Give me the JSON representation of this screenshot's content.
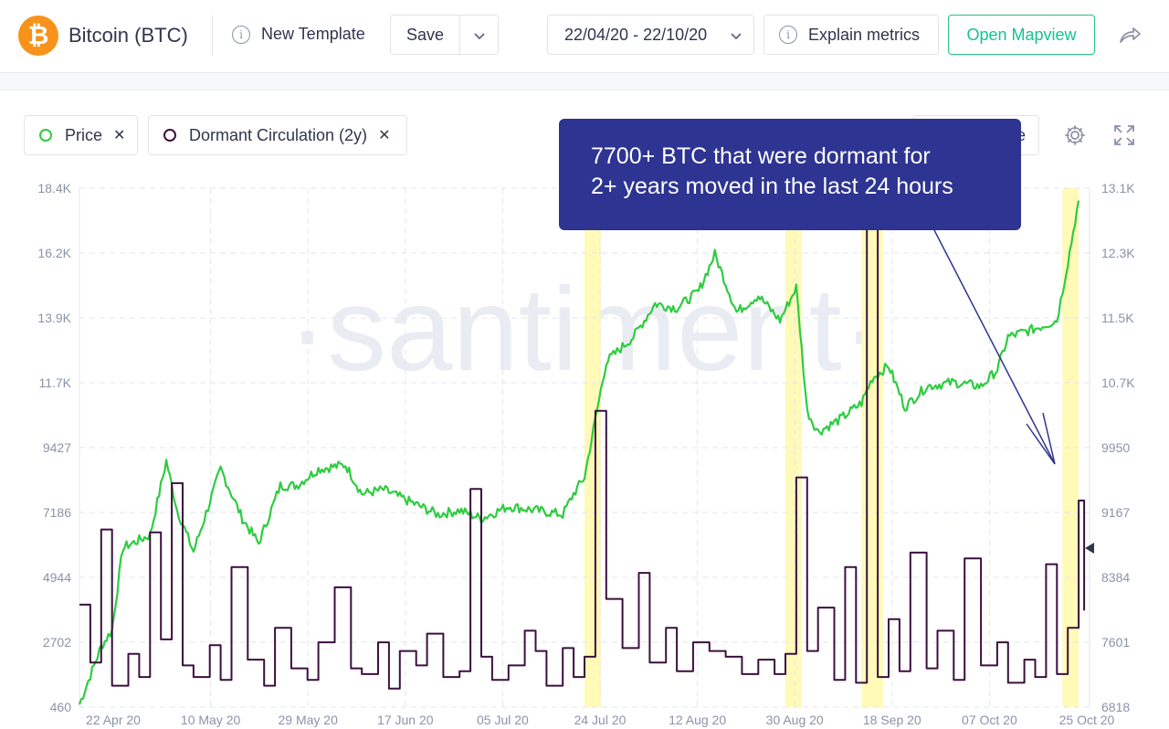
{
  "header": {
    "asset_title": "Bitcoin (BTC)",
    "new_template_label": "New Template",
    "save_label": "Save",
    "date_range": "22/04/20 - 22/10/20",
    "explain_label": "Explain metrics",
    "mapview_label": "Open Mapview",
    "icons": {
      "logo": "bitcoin-logo-icon",
      "info": "info-icon",
      "dropdown": "chevron-down-icon",
      "share": "share-icon",
      "settings": "gear-icon",
      "fullscreen": "expand-icon",
      "remove": "close-icon"
    }
  },
  "legend": {
    "price_label": "Price",
    "dormant_label": "Dormant Circulation (2y)",
    "hidden_button_fragment": "e"
  },
  "annotation": {
    "line1": "7700+ BTC that were dormant for",
    "line2": "2+ years moved in the last 24 hours"
  },
  "watermark": "·santiment·",
  "colors": {
    "price": "#2ecc40",
    "dormant": "#3c0f3e",
    "highlight": "#fffab8",
    "callout": "#2e3491",
    "accent": "#14c393",
    "bitcoin": "#f7931a"
  },
  "chart_data": {
    "type": "line",
    "x_start": "2020-04-22",
    "x_end": "2020-10-25",
    "x_ticks": [
      "22 Apr 20",
      "10 May 20",
      "29 May 20",
      "17 Jun 20",
      "05 Jul 20",
      "24 Jul 20",
      "12 Aug 20",
      "30 Aug 20",
      "18 Sep 20",
      "07 Oct 20",
      "25 Oct 20"
    ],
    "y_left_ticks": [
      "18.4K",
      "16.2K",
      "13.9K",
      "11.7K",
      "9427",
      "7186",
      "4944",
      "2702",
      "460"
    ],
    "y_left_range": [
      460,
      18400
    ],
    "y_right_ticks": [
      "13.1K",
      "12.3K",
      "11.5K",
      "10.7K",
      "9950",
      "9167",
      "8384",
      "7601",
      "6818"
    ],
    "y_right_range": [
      6818,
      13100
    ],
    "grid": true,
    "highlight_ranges": [
      [
        "2020-07-24",
        "2020-07-27"
      ],
      [
        "2020-08-30",
        "2020-09-02"
      ],
      [
        "2020-09-13",
        "2020-09-17"
      ],
      [
        "2020-10-20",
        "2020-10-23"
      ]
    ],
    "series": [
      {
        "name": "Price",
        "axis": "right",
        "x": [
          "2020-04-22",
          "2020-04-26",
          "2020-04-28",
          "2020-04-30",
          "2020-05-05",
          "2020-05-08",
          "2020-05-10",
          "2020-05-13",
          "2020-05-18",
          "2020-05-22",
          "2020-05-25",
          "2020-05-29",
          "2020-06-01",
          "2020-06-05",
          "2020-06-10",
          "2020-06-13",
          "2020-06-17",
          "2020-06-22",
          "2020-06-27",
          "2020-07-01",
          "2020-07-05",
          "2020-07-10",
          "2020-07-15",
          "2020-07-20",
          "2020-07-22",
          "2020-07-24",
          "2020-07-26",
          "2020-07-28",
          "2020-08-02",
          "2020-08-06",
          "2020-08-10",
          "2020-08-14",
          "2020-08-17",
          "2020-08-21",
          "2020-08-25",
          "2020-08-29",
          "2020-09-01",
          "2020-09-03",
          "2020-09-05",
          "2020-09-09",
          "2020-09-13",
          "2020-09-15",
          "2020-09-18",
          "2020-09-21",
          "2020-09-25",
          "2020-09-30",
          "2020-10-05",
          "2020-10-08",
          "2020-10-10",
          "2020-10-15",
          "2020-10-19",
          "2020-10-21",
          "2020-10-23"
        ],
        "values": [
          6850,
          7550,
          7750,
          8750,
          8900,
          9800,
          9200,
          8700,
          9700,
          9100,
          8800,
          9500,
          9500,
          9700,
          9750,
          9400,
          9450,
          9300,
          9150,
          9200,
          9100,
          9250,
          9200,
          9150,
          9400,
          9600,
          10300,
          11000,
          11300,
          11700,
          11650,
          11850,
          12300,
          11600,
          11800,
          11500,
          11900,
          10400,
          10150,
          10300,
          10500,
          10800,
          10950,
          10450,
          10700,
          10750,
          10700,
          10900,
          11300,
          11400,
          11500,
          12200,
          12950
        ]
      },
      {
        "name": "Dormant Circulation (2y)",
        "axis": "left",
        "x": [
          "2020-04-22",
          "2020-04-24",
          "2020-04-26",
          "2020-04-28",
          "2020-05-01",
          "2020-05-03",
          "2020-05-05",
          "2020-05-07",
          "2020-05-09",
          "2020-05-11",
          "2020-05-13",
          "2020-05-16",
          "2020-05-18",
          "2020-05-20",
          "2020-05-23",
          "2020-05-26",
          "2020-05-28",
          "2020-05-31",
          "2020-06-03",
          "2020-06-05",
          "2020-06-08",
          "2020-06-11",
          "2020-06-13",
          "2020-06-16",
          "2020-06-18",
          "2020-06-20",
          "2020-06-23",
          "2020-06-25",
          "2020-06-28",
          "2020-07-01",
          "2020-07-03",
          "2020-07-05",
          "2020-07-07",
          "2020-07-10",
          "2020-07-13",
          "2020-07-15",
          "2020-07-17",
          "2020-07-20",
          "2020-07-22",
          "2020-07-24",
          "2020-07-26",
          "2020-07-28",
          "2020-07-31",
          "2020-08-03",
          "2020-08-05",
          "2020-08-08",
          "2020-08-10",
          "2020-08-13",
          "2020-08-16",
          "2020-08-19",
          "2020-08-22",
          "2020-08-25",
          "2020-08-28",
          "2020-08-30",
          "2020-09-01",
          "2020-09-03",
          "2020-09-05",
          "2020-09-08",
          "2020-09-10",
          "2020-09-12",
          "2020-09-14",
          "2020-09-16",
          "2020-09-18",
          "2020-09-20",
          "2020-09-22",
          "2020-09-25",
          "2020-09-27",
          "2020-09-30",
          "2020-10-02",
          "2020-10-05",
          "2020-10-08",
          "2020-10-10",
          "2020-10-13",
          "2020-10-15",
          "2020-10-17",
          "2020-10-19",
          "2020-10-21",
          "2020-10-23",
          "2020-10-24"
        ],
        "values": [
          4000,
          2000,
          6600,
          1200,
          2300,
          1500,
          6500,
          2800,
          8200,
          1900,
          1500,
          2600,
          1400,
          5300,
          2100,
          1200,
          3200,
          1800,
          1400,
          2700,
          4600,
          1800,
          1600,
          2700,
          1100,
          2400,
          1900,
          3000,
          1500,
          1700,
          8000,
          2200,
          1400,
          1900,
          3100,
          2400,
          1200,
          2500,
          1500,
          2200,
          10700,
          4200,
          2500,
          5100,
          2000,
          3200,
          1700,
          2700,
          2400,
          2200,
          1600,
          2100,
          1600,
          2300,
          8400,
          2400,
          3900,
          1400,
          5300,
          1300,
          18400,
          1500,
          3500,
          1700,
          5800,
          1800,
          3100,
          1400,
          5600,
          1900,
          2700,
          1300,
          2100,
          1500,
          5400,
          1600,
          3200,
          7600,
          3800
        ]
      }
    ]
  }
}
